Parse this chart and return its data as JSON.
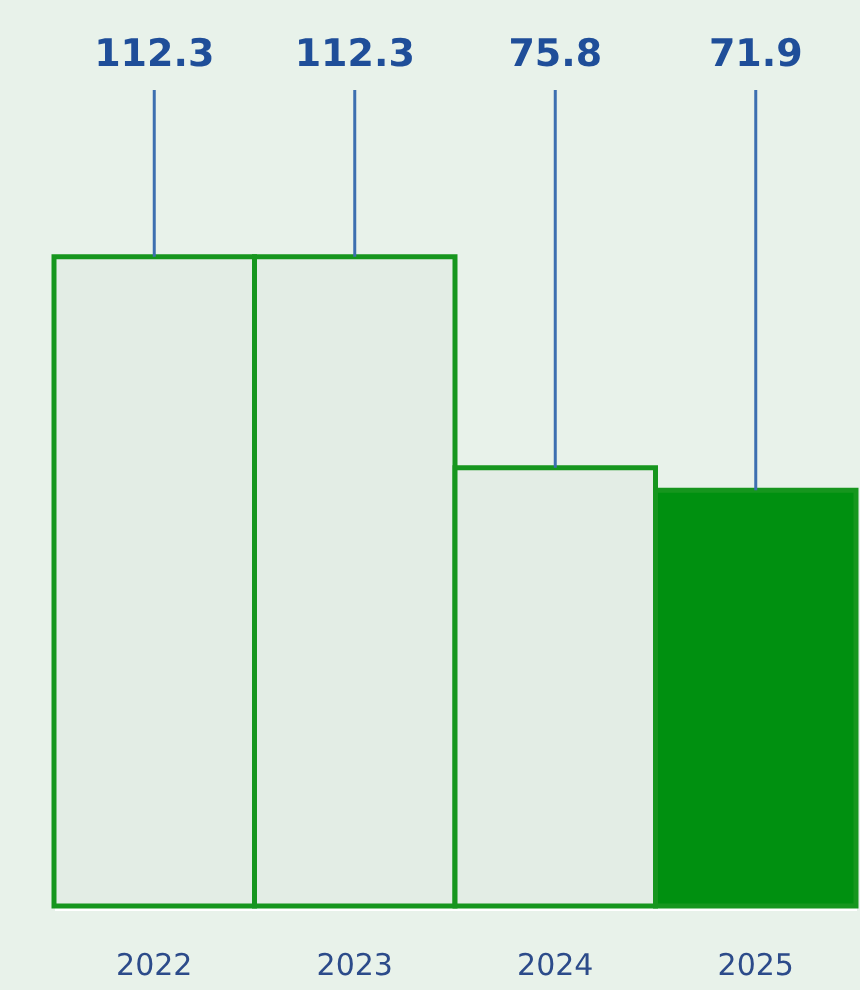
{
  "chart_data": {
    "type": "bar",
    "categories": [
      "2022",
      "2023",
      "2024",
      "2025"
    ],
    "values": [
      112.3,
      112.3,
      75.8,
      71.9
    ],
    "colors": [
      "#e3ede5",
      "#e3ede5",
      "#e3ede5",
      "#009010"
    ],
    "data_labels": true,
    "tick_labels": "x"
  }
}
